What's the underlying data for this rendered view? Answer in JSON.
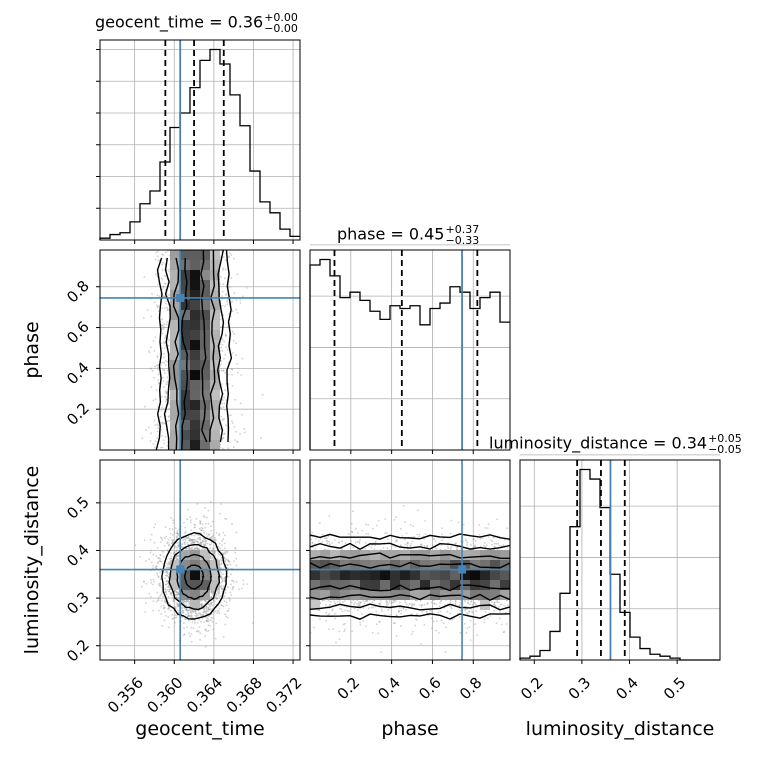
{
  "chart_data": {
    "type": "corner",
    "parameters": [
      "geocent_time",
      "phase",
      "luminosity_distance"
    ],
    "titles": [
      {
        "param": "geocent_time",
        "label": "geocent_time = 0.36",
        "plus": "+0.00",
        "minus": "−0.00"
      },
      {
        "param": "phase",
        "label": "phase = 0.45",
        "plus": "+0.37",
        "minus": "−0.33"
      },
      {
        "param": "luminosity_distance",
        "label": "luminosity_distance = 0.34",
        "plus": "+0.05",
        "minus": "−0.05"
      }
    ],
    "axes": {
      "geocent_time": {
        "range": [
          0.3525,
          0.3727
        ],
        "ticks": [
          0.356,
          0.36,
          0.364,
          0.368,
          0.372
        ],
        "tick_labels": [
          "0.356",
          "0.360",
          "0.364",
          "0.368",
          "0.372"
        ]
      },
      "phase": {
        "range": [
          0.0,
          0.98
        ],
        "ticks": [
          0.2,
          0.4,
          0.6,
          0.8
        ],
        "tick_labels": [
          "0.2",
          "0.4",
          "0.6",
          "0.8"
        ]
      },
      "luminosity_distance": {
        "range": [
          0.17,
          0.59
        ],
        "ticks": [
          0.2,
          0.3,
          0.4,
          0.5
        ],
        "tick_labels": [
          "0.2",
          "0.3",
          "0.4",
          "0.5"
        ]
      }
    },
    "injected": {
      "geocent_time": 0.3606,
      "phase": 0.745,
      "luminosity_distance": 0.36
    },
    "quantiles": {
      "geocent_time": [
        0.3591,
        0.362,
        0.365
      ],
      "phase": [
        0.12,
        0.45,
        0.82
      ],
      "luminosity_distance": [
        0.29,
        0.34,
        0.39
      ]
    },
    "histograms": {
      "geocent_time": {
        "edges_start": 0.3525,
        "bin_width": 0.00101,
        "counts": [
          1,
          3,
          4,
          10,
          20,
          27,
          43,
          62,
          70,
          84,
          99,
          105,
          97,
          80,
          63,
          38,
          21,
          15,
          6,
          2
        ]
      },
      "phase": {
        "edges_start": 0.0,
        "bin_width": 0.049,
        "counts": [
          68,
          70,
          64,
          56,
          58,
          55,
          51,
          48,
          53,
          52,
          53,
          46,
          52,
          54,
          60,
          58,
          52,
          56,
          58,
          47
        ]
      },
      "luminosity_distance": {
        "edges_start": 0.17,
        "bin_width": 0.021,
        "counts": [
          1,
          2,
          5,
          15,
          35,
          70,
          100,
          95,
          80,
          45,
          25,
          12,
          6,
          3,
          2,
          1,
          0,
          0,
          0,
          0
        ]
      }
    },
    "grid": true,
    "colors": {
      "truth": "#4682b4",
      "line": "#000000",
      "grid": "#b0b0b0"
    }
  }
}
